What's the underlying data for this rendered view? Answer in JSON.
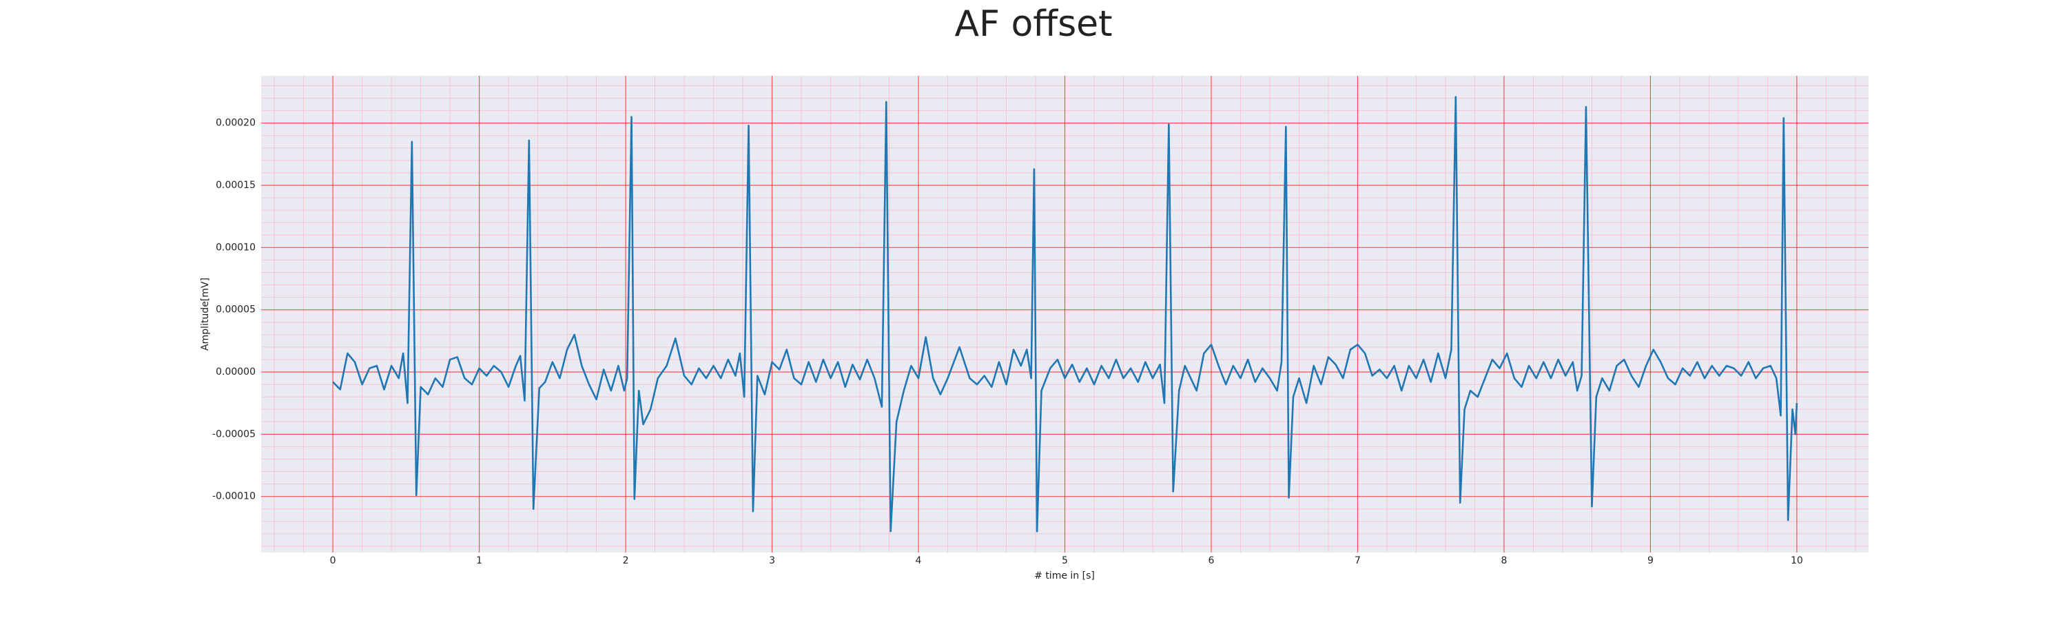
{
  "chart_data": {
    "type": "line",
    "title": "AF offset",
    "xlabel": "# time in [s]",
    "ylabel": "Amplitude[mV]",
    "xlim": [
      -0.49,
      10.49
    ],
    "ylim": [
      -0.000145,
      0.000238
    ],
    "xticks": [
      0,
      1,
      2,
      3,
      4,
      5,
      6,
      7,
      8,
      9,
      10
    ],
    "yticks": [
      {
        "value": -0.0001,
        "label": "-0.00010"
      },
      {
        "value": -5e-05,
        "label": "-0.00005"
      },
      {
        "value": 0,
        "label": "0.00000"
      },
      {
        "value": 5e-05,
        "label": "0.00005"
      },
      {
        "value": 0.0001,
        "label": "0.00010"
      },
      {
        "value": 0.00015,
        "label": "0.00015"
      },
      {
        "value": 0.0002,
        "label": "0.00020"
      }
    ],
    "grid": true,
    "grid_color": "#ff0000",
    "minor_grid": {
      "x": 5,
      "y": 5,
      "color": "#ffb6c1"
    },
    "background": "#eaeaf2",
    "series": [
      {
        "color": "#1f77b4",
        "x": [
          0,
          0.05,
          0.1,
          0.15,
          0.2,
          0.25,
          0.3,
          0.35,
          0.4,
          0.45,
          0.48,
          0.51,
          0.54,
          0.57,
          0.6,
          0.65,
          0.7,
          0.75,
          0.8,
          0.85,
          0.9,
          0.95,
          1.0,
          1.05,
          1.1,
          1.15,
          1.2,
          1.25,
          1.28,
          1.31,
          1.34,
          1.37,
          1.41,
          1.45,
          1.5,
          1.55,
          1.6,
          1.65,
          1.7,
          1.75,
          1.8,
          1.85,
          1.9,
          1.95,
          1.99,
          2.01,
          2.04,
          2.06,
          2.09,
          2.12,
          2.17,
          2.22,
          2.28,
          2.34,
          2.4,
          2.45,
          2.5,
          2.55,
          2.6,
          2.65,
          2.7,
          2.75,
          2.78,
          2.81,
          2.84,
          2.87,
          2.9,
          2.95,
          3.0,
          3.05,
          3.1,
          3.15,
          3.2,
          3.25,
          3.3,
          3.35,
          3.4,
          3.45,
          3.5,
          3.55,
          3.6,
          3.65,
          3.7,
          3.75,
          3.78,
          3.81,
          3.85,
          3.9,
          3.95,
          4.0,
          4.05,
          4.1,
          4.15,
          4.2,
          4.28,
          4.35,
          4.4,
          4.45,
          4.5,
          4.55,
          4.6,
          4.65,
          4.7,
          4.74,
          4.77,
          4.79,
          4.81,
          4.84,
          4.9,
          4.95,
          5.0,
          5.05,
          5.1,
          5.15,
          5.2,
          5.25,
          5.3,
          5.35,
          5.4,
          5.45,
          5.5,
          5.55,
          5.6,
          5.65,
          5.68,
          5.71,
          5.74,
          5.78,
          5.82,
          5.86,
          5.9,
          5.95,
          6.0,
          6.05,
          6.1,
          6.15,
          6.2,
          6.25,
          6.3,
          6.35,
          6.4,
          6.45,
          6.48,
          6.51,
          6.53,
          6.56,
          6.6,
          6.65,
          6.7,
          6.75,
          6.8,
          6.85,
          6.9,
          6.95,
          7.0,
          7.05,
          7.1,
          7.15,
          7.2,
          7.25,
          7.3,
          7.35,
          7.4,
          7.45,
          7.5,
          7.55,
          7.6,
          7.64,
          7.67,
          7.7,
          7.73,
          7.77,
          7.82,
          7.87,
          7.92,
          7.97,
          8.02,
          8.07,
          8.12,
          8.17,
          8.22,
          8.27,
          8.32,
          8.37,
          8.42,
          8.47,
          8.5,
          8.53,
          8.56,
          8.6,
          8.63,
          8.67,
          8.72,
          8.77,
          8.82,
          8.87,
          8.92,
          8.97,
          9.02,
          9.07,
          9.12,
          9.17,
          9.22,
          9.27,
          9.32,
          9.37,
          9.42,
          9.47,
          9.52,
          9.57,
          9.62,
          9.67,
          9.72,
          9.77,
          9.82,
          9.86,
          9.89,
          9.91,
          9.94,
          9.97,
          9.99,
          10.0
        ],
        "values": [
          -8e-06,
          -1.4e-05,
          1.5e-05,
          8e-06,
          -1e-05,
          3e-06,
          5e-06,
          -1.4e-05,
          5e-06,
          -5e-06,
          1.5e-05,
          -2.5e-05,
          0.000185,
          -9.9e-05,
          -1.2e-05,
          -1.8e-05,
          -5e-06,
          -1.2e-05,
          1e-05,
          1.2e-05,
          -5e-06,
          -1e-05,
          3e-06,
          -3e-06,
          5e-06,
          0,
          -1.2e-05,
          5e-06,
          1.3e-05,
          -2.3e-05,
          0.000186,
          -0.00011,
          -1.3e-05,
          -8e-06,
          8e-06,
          -5e-06,
          1.8e-05,
          3e-05,
          5e-06,
          -1e-05,
          -2.2e-05,
          2e-06,
          -1.5e-05,
          5e-06,
          -1.5e-05,
          -5e-06,
          0.000205,
          -0.000102,
          -1.5e-05,
          -4.2e-05,
          -3e-05,
          -5e-06,
          5e-06,
          2.7e-05,
          -3e-06,
          -1e-05,
          3e-06,
          -5e-06,
          5e-06,
          -5e-06,
          1e-05,
          -3e-06,
          1.5e-05,
          -2e-05,
          0.000198,
          -0.000112,
          -3e-06,
          -1.8e-05,
          8e-06,
          2e-06,
          1.8e-05,
          -5e-06,
          -1e-05,
          8e-06,
          -8e-06,
          1e-05,
          -5e-06,
          8e-06,
          -1.2e-05,
          6e-06,
          -6e-06,
          1e-05,
          -5e-06,
          -2.8e-05,
          0.000217,
          -0.000128,
          -4e-05,
          -1.5e-05,
          5e-06,
          -5e-06,
          2.8e-05,
          -5e-06,
          -1.8e-05,
          -5e-06,
          2e-05,
          -5e-06,
          -1e-05,
          -3e-06,
          -1.2e-05,
          8e-06,
          -1e-05,
          1.8e-05,
          5e-06,
          1.8e-05,
          -5e-06,
          0.000163,
          -0.000128,
          -1.5e-05,
          3e-06,
          1e-05,
          -5e-06,
          6e-06,
          -8e-06,
          3e-06,
          -1e-05,
          5e-06,
          -5e-06,
          1e-05,
          -5e-06,
          3e-06,
          -8e-06,
          8e-06,
          -5e-06,
          6e-06,
          -2.5e-05,
          0.000199,
          -9.6e-05,
          -1.5e-05,
          5e-06,
          -5e-06,
          -1.5e-05,
          1.5e-05,
          2.2e-05,
          5e-06,
          -1e-05,
          5e-06,
          -5e-06,
          1e-05,
          -8e-06,
          3e-06,
          -5e-06,
          -1.5e-05,
          8e-06,
          0.000197,
          -0.000101,
          -2e-05,
          -5e-06,
          -2.5e-05,
          5e-06,
          -1e-05,
          1.2e-05,
          6e-06,
          -5e-06,
          1.8e-05,
          2.2e-05,
          1.5e-05,
          -3e-06,
          2e-06,
          -5e-06,
          5e-06,
          -1.5e-05,
          5e-06,
          -5e-06,
          1e-05,
          -8e-06,
          1.5e-05,
          -5e-06,
          1.8e-05,
          0.000221,
          -0.000105,
          -3e-05,
          -1.5e-05,
          -2e-05,
          -5e-06,
          1e-05,
          3e-06,
          1.5e-05,
          -5e-06,
          -1.2e-05,
          5e-06,
          -5e-06,
          8e-06,
          -5e-06,
          1e-05,
          -3e-06,
          8e-06,
          -1.5e-05,
          -3e-06,
          0.000213,
          -0.000108,
          -2e-05,
          -5e-06,
          -1.5e-05,
          5e-06,
          1e-05,
          -3e-06,
          -1.2e-05,
          5e-06,
          1.8e-05,
          8e-06,
          -5e-06,
          -1e-05,
          3e-06,
          -3e-06,
          8e-06,
          -5e-06,
          5e-06,
          -3e-06,
          5e-06,
          3e-06,
          -3e-06,
          8e-06,
          -5e-06,
          3e-06,
          5e-06,
          -5e-06,
          -3.5e-05,
          0.000204,
          -0.000119,
          -3e-05,
          -5e-05,
          -2.5e-05
        ]
      }
    ]
  }
}
